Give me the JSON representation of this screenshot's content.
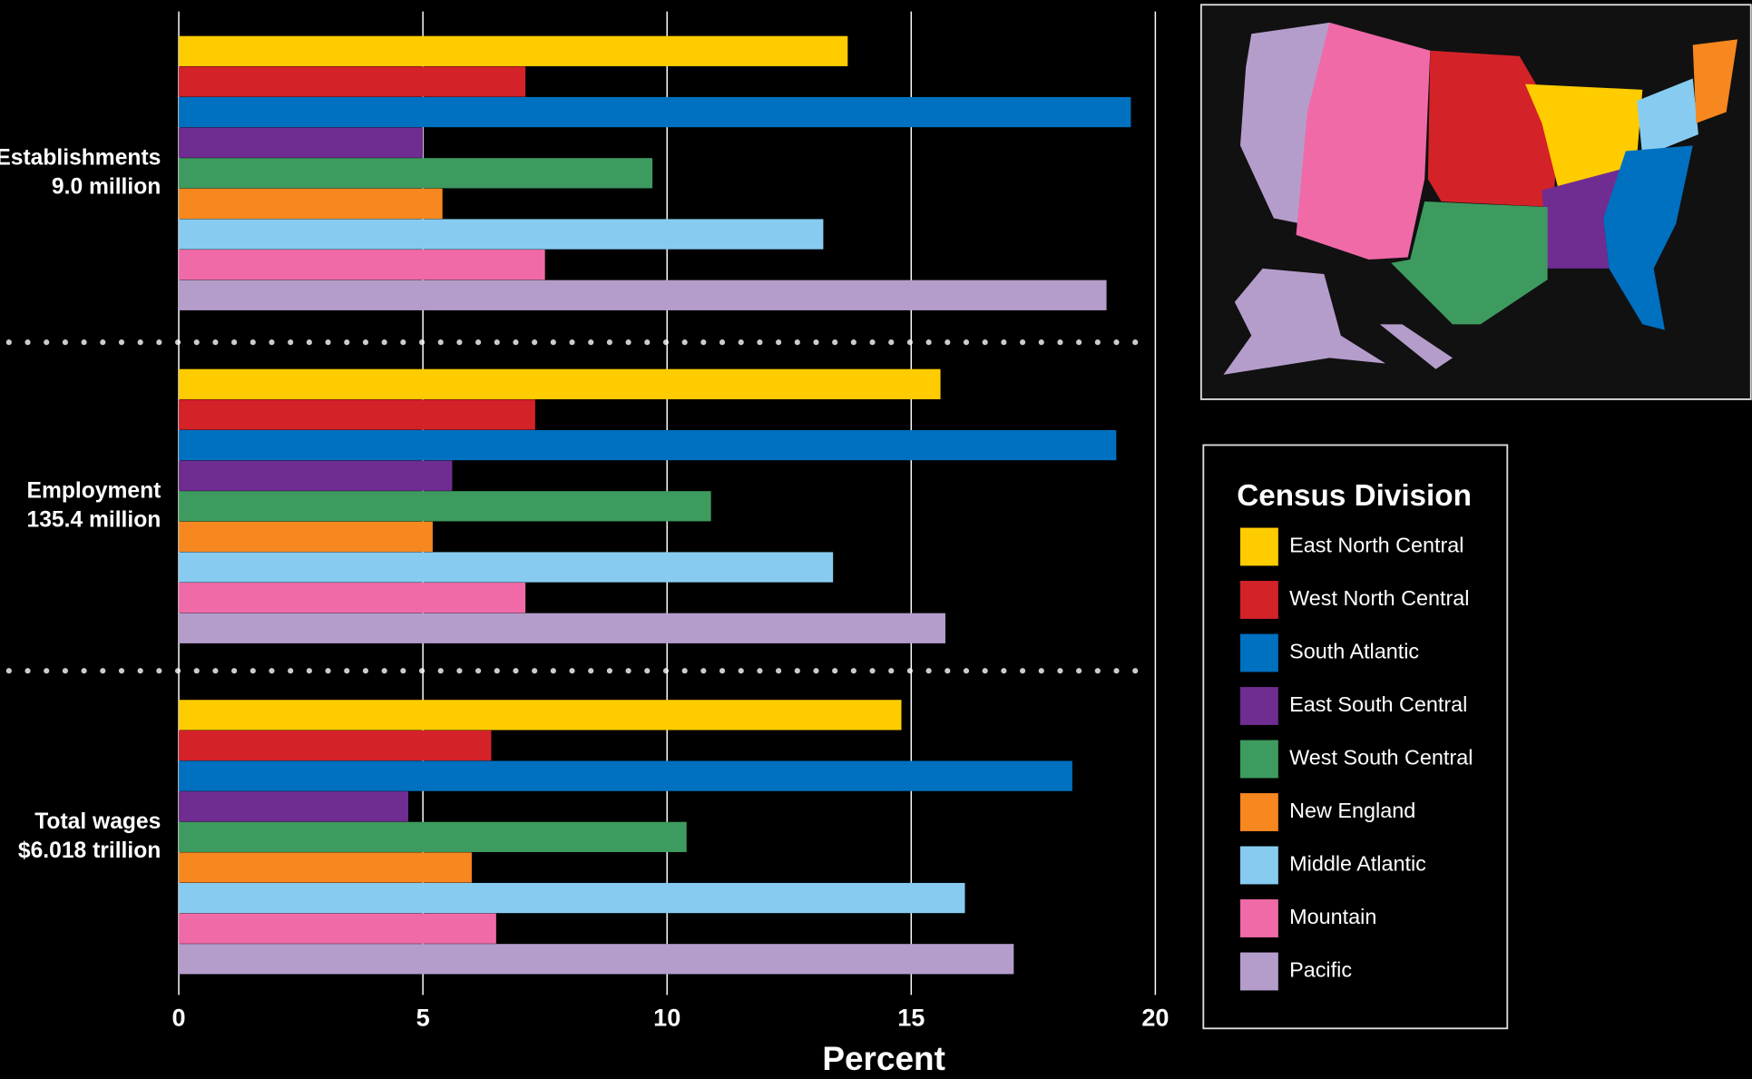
{
  "chart_data": {
    "type": "bar",
    "orientation": "horizontal",
    "categories": [
      "Establishments",
      "Employment",
      "Total wages"
    ],
    "category_totals": [
      "9.0 million",
      "135.4 million",
      "$6.018 trillion"
    ],
    "series": [
      {
        "name": "East North Central",
        "color": "#ffcc00",
        "values": [
          13.7,
          15.6,
          14.8
        ]
      },
      {
        "name": "West North Central",
        "color": "#d42229",
        "values": [
          7.1,
          7.3,
          6.4
        ]
      },
      {
        "name": "South Atlantic",
        "color": "#0070c0",
        "values": [
          19.5,
          19.2,
          18.3
        ]
      },
      {
        "name": "East South Central",
        "color": "#6f2c91",
        "values": [
          5.0,
          5.6,
          4.7
        ]
      },
      {
        "name": "West South Central",
        "color": "#3e9b5f",
        "values": [
          9.7,
          10.9,
          10.4
        ]
      },
      {
        "name": "New England",
        "color": "#f7871f",
        "values": [
          5.4,
          5.2,
          6.0
        ]
      },
      {
        "name": "Middle Atlantic",
        "color": "#87ccf0",
        "values": [
          13.2,
          13.4,
          16.1
        ]
      },
      {
        "name": "Mountain",
        "color": "#f06aa8",
        "values": [
          7.5,
          7.1,
          6.5
        ]
      },
      {
        "name": "Pacific",
        "color": "#b59dcb",
        "values": [
          19.0,
          15.7,
          17.1
        ]
      }
    ],
    "xlabel": "Percent",
    "xlim": [
      0,
      20
    ],
    "xticks": [
      0,
      5,
      10,
      15,
      20
    ],
    "grid": true,
    "legend_title": "Census Division"
  }
}
